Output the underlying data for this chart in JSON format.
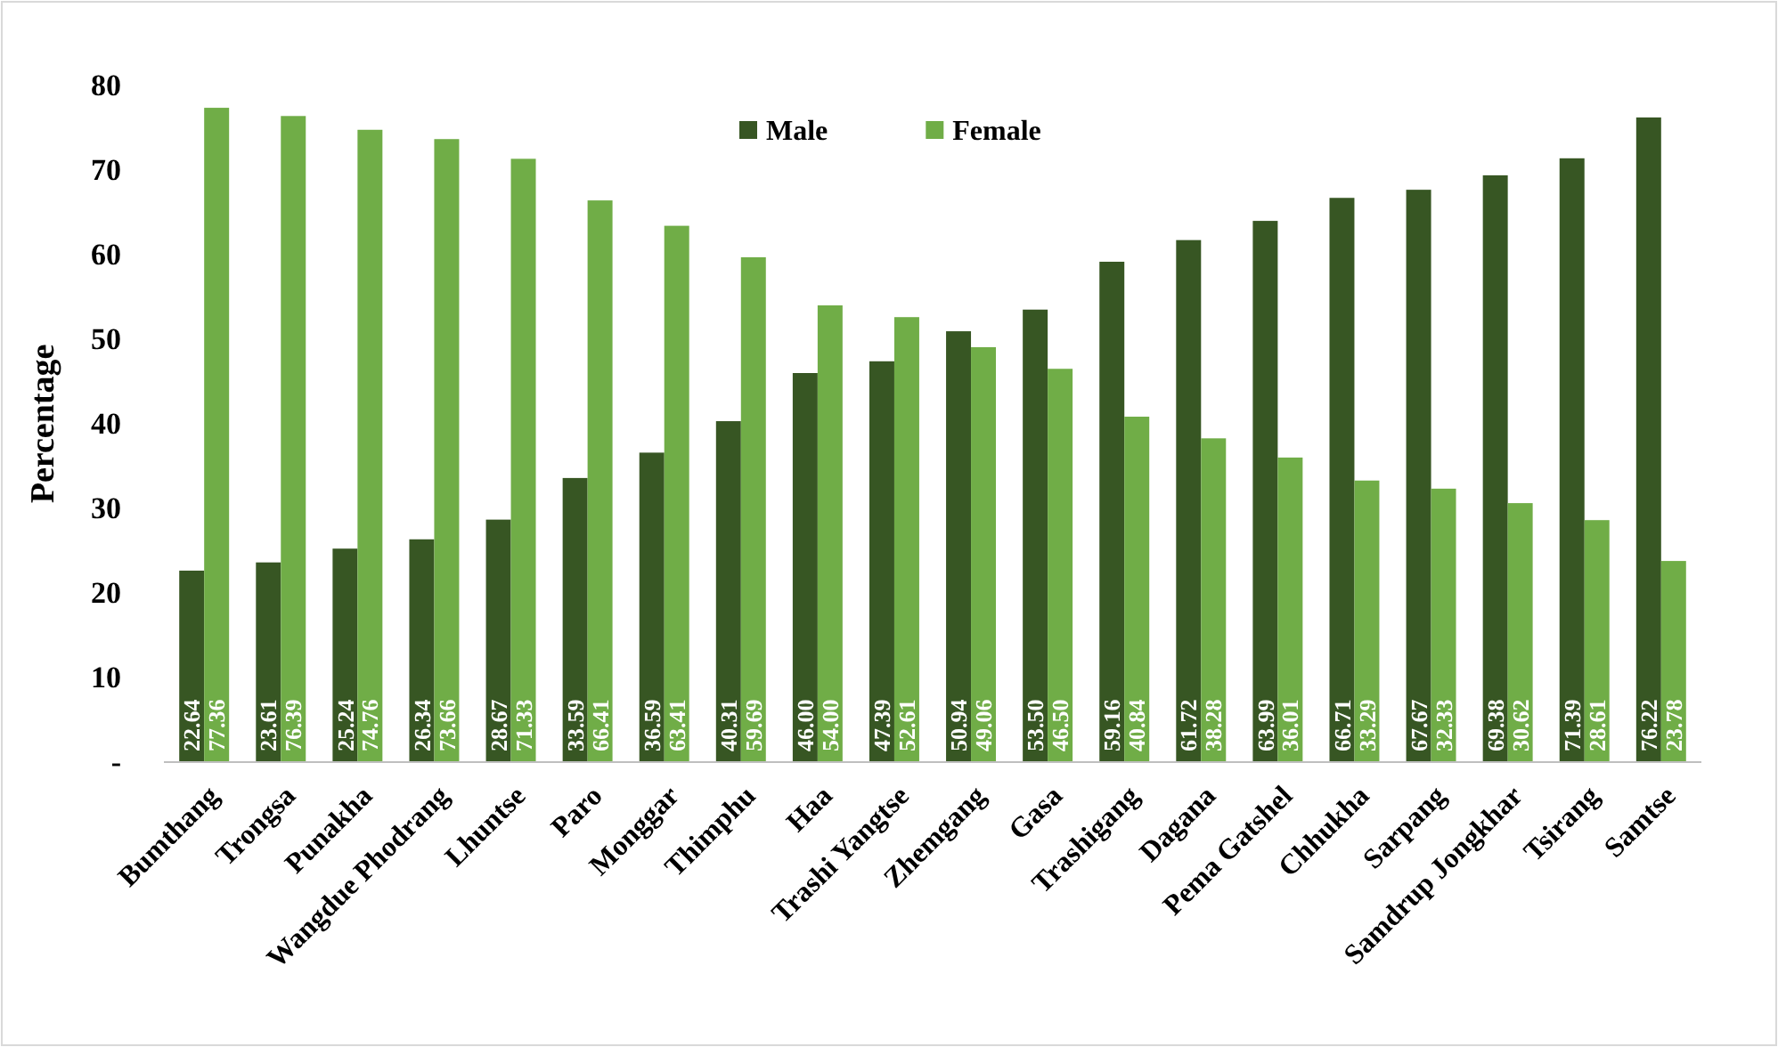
{
  "chart_data": {
    "type": "bar",
    "ylabel": "Percentage",
    "categories": [
      "Bumthang",
      "Trongsa",
      "Punakha",
      "Wangdue Phodrang",
      "Lhuntse",
      "Paro",
      "Monggar",
      "Thimphu",
      "Haa",
      "Trashi Yangtse",
      "Zhemgang",
      "Gasa",
      "Trashigang",
      "Dagana",
      "Pema Gatshel",
      "Chhukha",
      "Sarpang",
      "Samdrup Jongkhar",
      "Tsirang",
      "Samtse"
    ],
    "series": [
      {
        "name": "Male",
        "color": "#375623",
        "values": [
          22.64,
          23.61,
          25.24,
          26.34,
          28.67,
          33.59,
          36.59,
          40.31,
          46.0,
          47.39,
          50.94,
          53.5,
          59.16,
          61.72,
          63.99,
          66.71,
          67.67,
          69.38,
          71.39,
          76.22
        ],
        "value_labels": [
          "22.64",
          "23.61",
          "25.24",
          "26.34",
          "28.67",
          "33.59",
          "36.59",
          "40.31",
          "46.00",
          "47.39",
          "50.94",
          "53.50",
          "59.16",
          "61.72",
          "63.99",
          "66.71",
          "67.67",
          "69.38",
          "71.39",
          "76.22"
        ]
      },
      {
        "name": "Female",
        "color": "#70ad47",
        "values": [
          77.36,
          76.39,
          74.76,
          73.66,
          71.33,
          66.41,
          63.41,
          59.69,
          54.0,
          52.61,
          49.06,
          46.5,
          40.84,
          38.28,
          36.01,
          33.29,
          32.33,
          30.62,
          28.61,
          23.78
        ],
        "value_labels": [
          "77.36",
          "76.39",
          "74.76",
          "73.66",
          "71.33",
          "66.41",
          "63.41",
          "59.69",
          "54.00",
          "52.61",
          "49.06",
          "46.50",
          "40.84",
          "38.28",
          "36.01",
          "33.29",
          "32.33",
          "30.62",
          "28.61",
          "23.78"
        ]
      }
    ],
    "ylim": [
      0,
      80
    ],
    "yticks": [
      {
        "value": 0,
        "label": "-"
      },
      10,
      20,
      30,
      40,
      50,
      60,
      70,
      80
    ],
    "grid": false,
    "legend": "top"
  }
}
